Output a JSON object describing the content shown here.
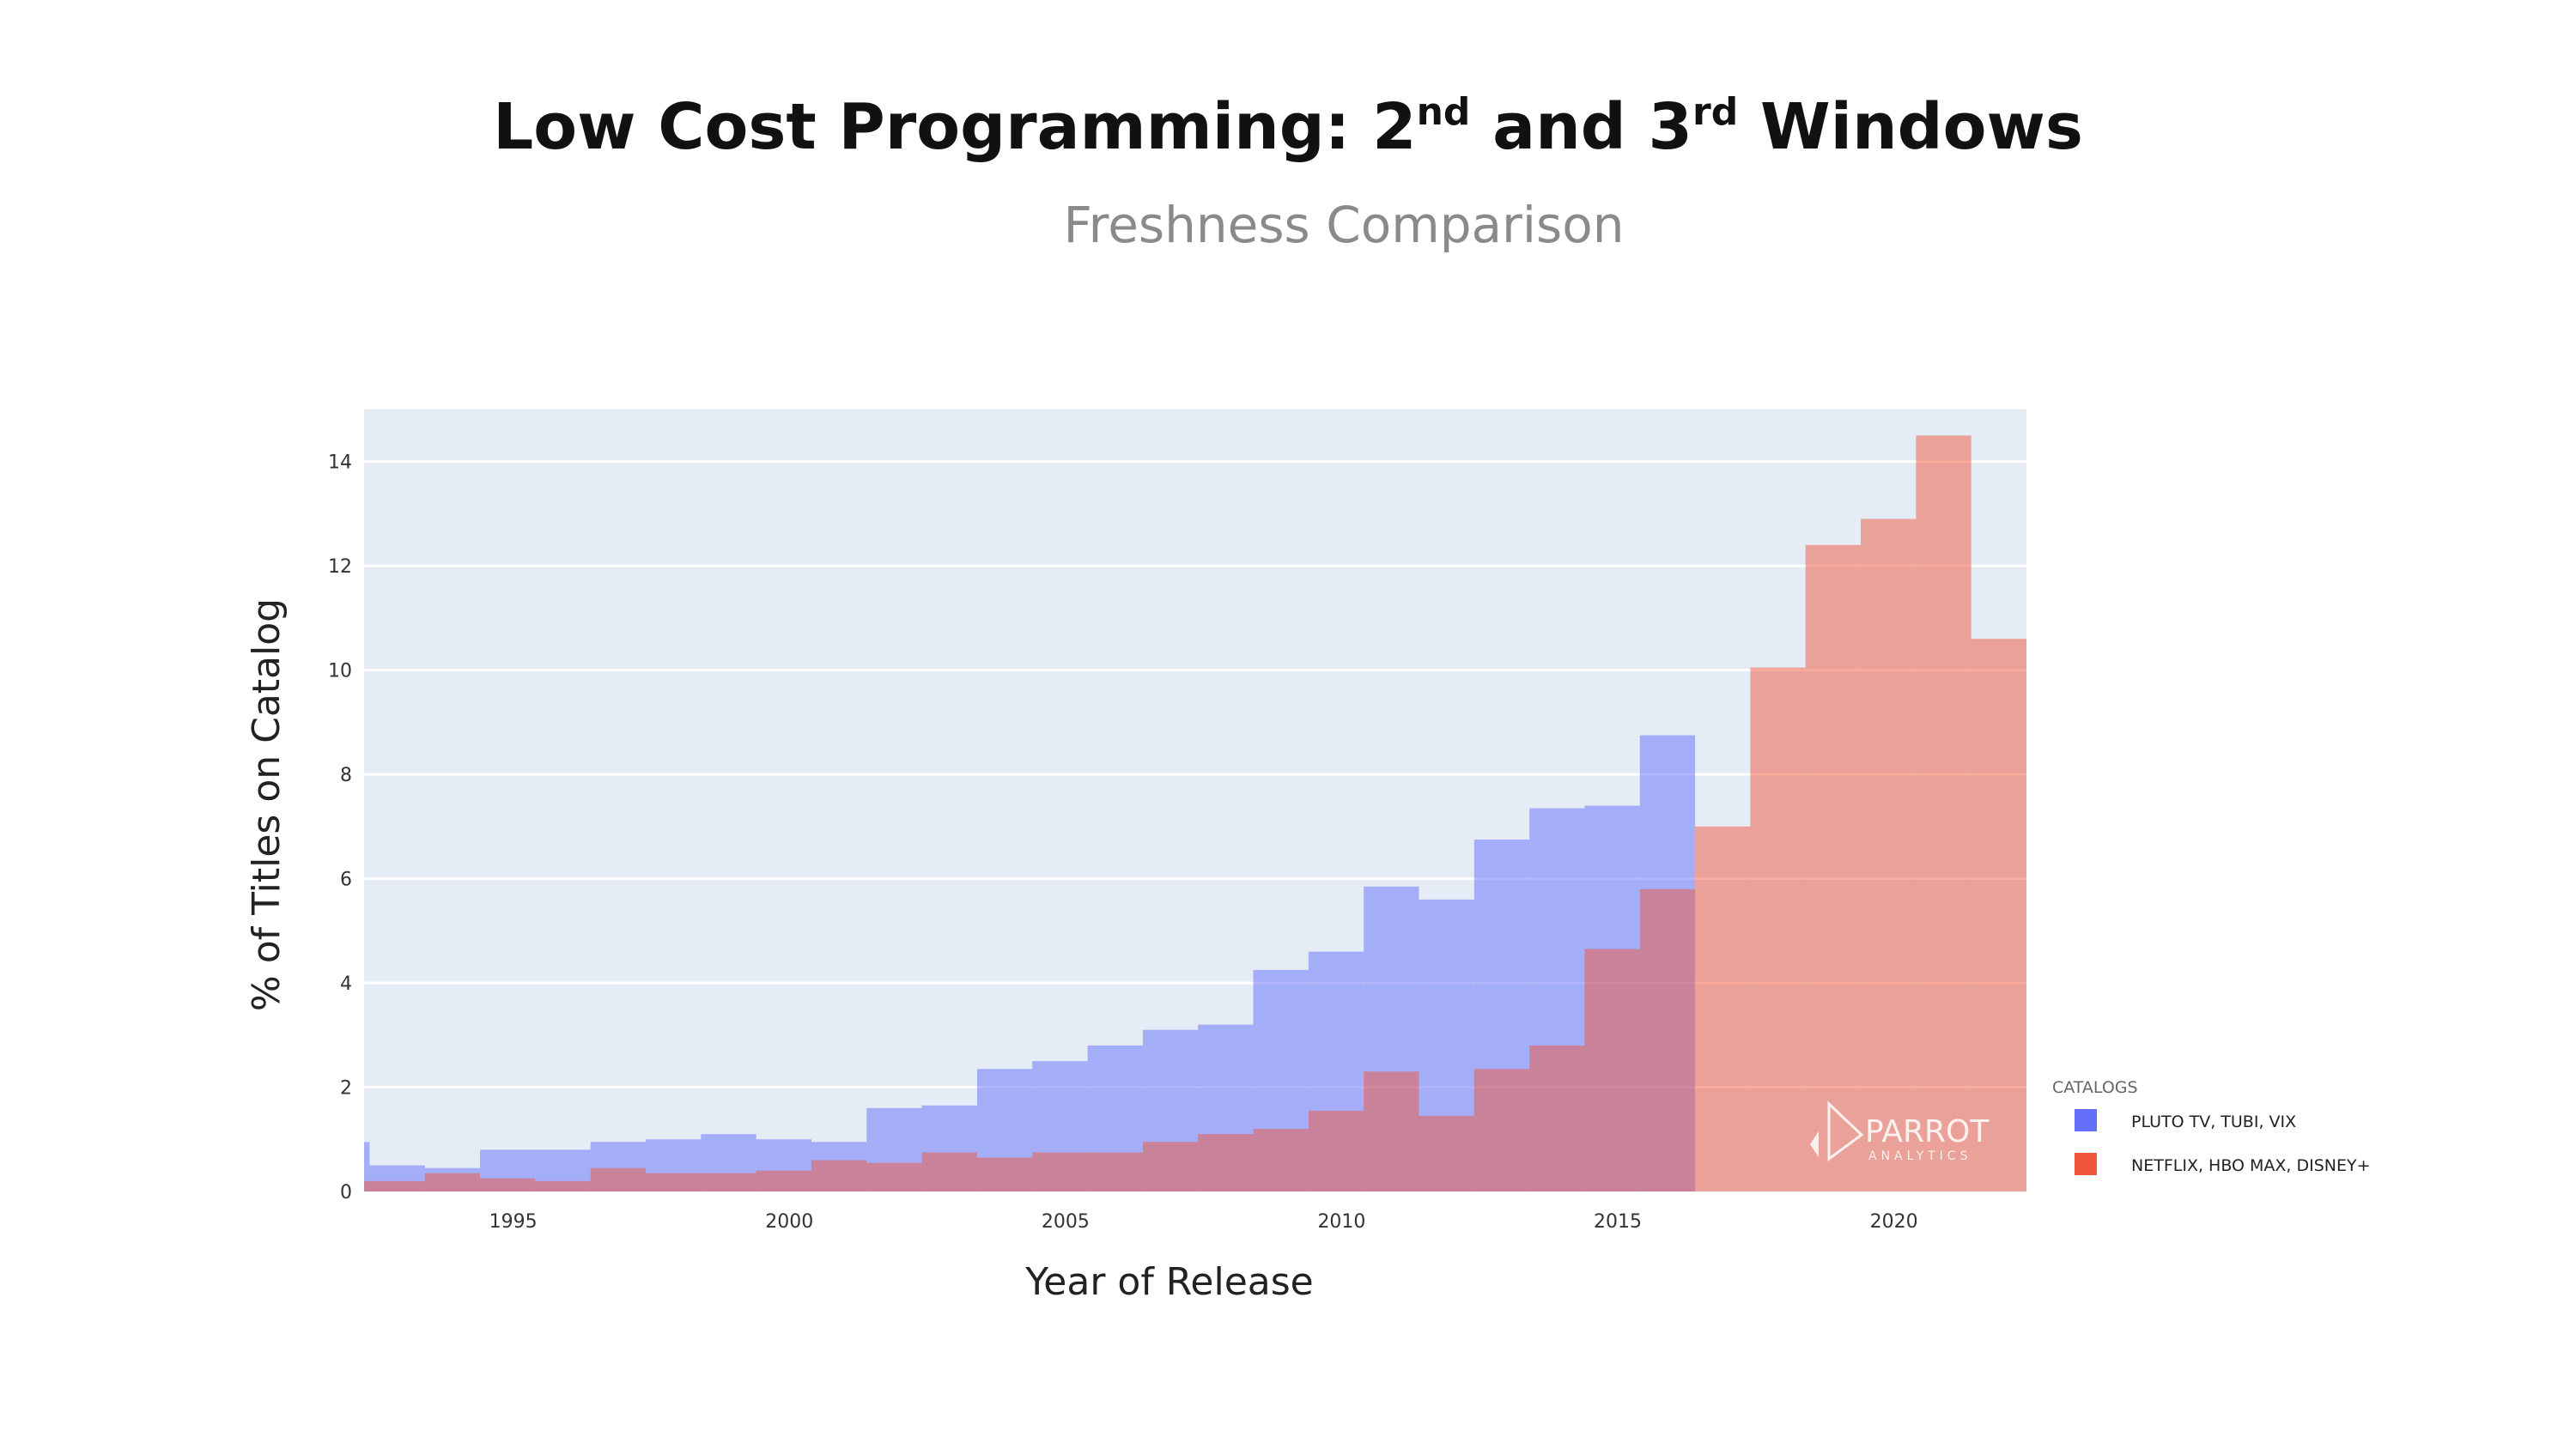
{
  "header": {
    "title_main": "Low Cost Programming: 2",
    "title_sup1": "nd",
    "title_mid": " and 3",
    "title_sup2": "rd",
    "title_end": " Windows",
    "subtitle": "Freshness Comparison"
  },
  "watermark": {
    "brand": "PARROT",
    "tagline": "ANALYTICS"
  },
  "chart_data": {
    "type": "bar",
    "xlabel": "Year of Release",
    "ylabel": "% of Titles on Catalog",
    "xlim": [
      1992.3,
      2022.4
    ],
    "ylim": [
      0,
      15
    ],
    "xticks": [
      1995,
      2000,
      2005,
      2010,
      2015,
      2020
    ],
    "yticks": [
      0,
      2,
      4,
      6,
      8,
      10,
      12,
      14
    ],
    "grid": true,
    "legend_title": "CATALOGS",
    "legend_position": "right",
    "bin_edges": [
      1992.3,
      1992.4,
      1993.4,
      1994.4,
      1995.4,
      1996.4,
      1997.4,
      1998.4,
      1999.4,
      2000.4,
      2001.4,
      2002.4,
      2003.4,
      2004.4,
      2005.4,
      2006.4,
      2007.4,
      2008.4,
      2009.4,
      2010.4,
      2011.4,
      2012.4,
      2013.4,
      2014.4,
      2015.4,
      2016.4,
      2017.4,
      2018.4,
      2019.4,
      2020.4,
      2021.4,
      2022.4
    ],
    "series": [
      {
        "name": "PLUTO TV, TUBI, VIX",
        "color": "#636efa",
        "values": [
          0.95,
          0.5,
          0.45,
          0.8,
          0.8,
          0.95,
          1.0,
          1.1,
          1.0,
          0.95,
          1.6,
          1.65,
          2.35,
          2.5,
          2.8,
          3.1,
          3.2,
          4.25,
          4.6,
          5.85,
          5.6,
          6.75,
          7.35,
          7.4,
          8.75,
          0,
          0,
          0,
          0,
          0,
          0
        ]
      },
      {
        "name": "NETFLIX, HBO MAX, DISNEY+",
        "color": "#ef553b",
        "values": [
          0.2,
          0.2,
          0.35,
          0.25,
          0.2,
          0.45,
          0.35,
          0.35,
          0.4,
          0.6,
          0.55,
          0.75,
          0.65,
          0.75,
          0.75,
          0.95,
          1.1,
          1.2,
          1.55,
          2.3,
          1.45,
          2.35,
          2.8,
          4.65,
          5.8,
          7.0,
          10.05,
          12.4,
          12.9,
          14.5,
          10.6
        ]
      }
    ]
  }
}
